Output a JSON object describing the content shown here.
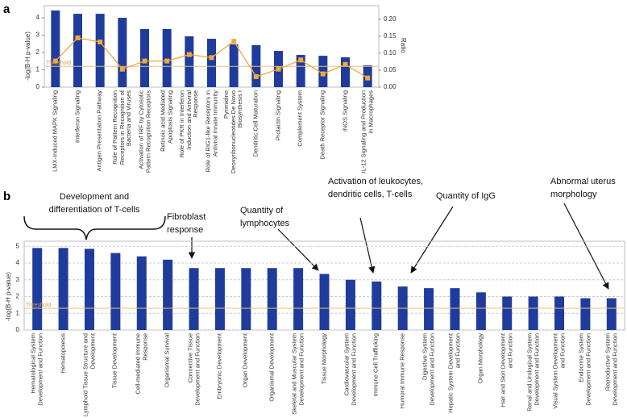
{
  "chart_data": [
    {
      "type": "bar",
      "panel": "a",
      "y_label": "-log(B-H p-value)",
      "y2_label": "Ratio",
      "categories": [
        "LMX-Induced MAPK Signaling",
        "Interferon Signaling",
        "Antigen Presentation Pathway",
        "Role of Pattern Recognition Receptors in Recognition of Bacteria and Viruses",
        "Activation of IRF by Cytosolic Pattern Recognition Receptors",
        "Retinoic acid Mediated Apoptosis Signaling",
        "Role of PKR in Interferon Induction and Antiviral Response",
        "Role of RIG1-like Receptors in Antiviral Innate Immunity",
        "Pyrimidine Deoxyribonucleotides De Novo Biosynthesis I",
        "Dendritic Cell Maturation",
        "Prolactin Signaling",
        "Complement System",
        "Death Receptor Signaling",
        "iNOS Signaling",
        "IL-12 Signaling and Production in Macrophages"
      ],
      "values": [
        4.42,
        4.23,
        4.23,
        4.0,
        3.35,
        3.35,
        2.93,
        2.79,
        2.47,
        2.42,
        2.09,
        1.86,
        1.81,
        1.72,
        1.26
      ],
      "color": "#1f3c9c",
      "y2_values": [
        0.077,
        0.145,
        0.133,
        0.053,
        0.077,
        0.077,
        0.096,
        0.087,
        0.135,
        0.031,
        0.053,
        0.08,
        0.039,
        0.067,
        0.027
      ],
      "line_color": "#f0a83a",
      "axis": "y2",
      "threshold": {
        "label": "Threshold",
        "value": 1.2
      },
      "ylim": [
        0,
        4.7
      ],
      "yticks": [
        0,
        1,
        2,
        3,
        4
      ],
      "y2lim": [
        0,
        0.24
      ],
      "y2ticks": [
        {
          "value": 0,
          "label": "0.00"
        },
        {
          "value": 0.05,
          "label": "0.05"
        },
        {
          "value": 0.1,
          "label": "0.10"
        },
        {
          "value": 0.15,
          "label": "0.15"
        },
        {
          "value": 0.2,
          "label": "0.20"
        }
      ],
      "grid": false
    },
    {
      "type": "bar",
      "panel": "b",
      "y_label": "-log(B-H p-value)",
      "categories": [
        "Hematological System Development and Function",
        "Hematopoiesis",
        "Lymphoid Tissue Structure and Development",
        "Tissue Development",
        "Cell-mediated Immune Response",
        "Organismal Survival",
        "Connective Tissue Development and Function",
        "Embryonic Development",
        "Organ Development",
        "Organismal Development",
        "Skeletal and Muscular System Development and Function",
        "Tissue Morphology",
        "Cardiovascular System Development and Function",
        "Immune Cell Trafficking",
        "Humoral Immune Response",
        "Digestive System Development and Function",
        "Hepatic System Development and Function",
        "Organ Morphology",
        "Hair and Skin Development and Function",
        "Renal and Urological System Development and Function",
        "Visual System Development and Function",
        "Endocrine System Development and Function",
        "Reproductive System Development and Function"
      ],
      "values": [
        4.9,
        4.9,
        4.85,
        4.6,
        4.4,
        4.2,
        3.7,
        3.7,
        3.7,
        3.7,
        3.7,
        3.35,
        3.0,
        2.9,
        2.6,
        2.5,
        2.5,
        2.25,
        2.0,
        2.0,
        2.0,
        1.9,
        1.9
      ],
      "color": "#1f3c9c",
      "threshold": {
        "label": "Threshold",
        "value": 1.3
      },
      "ylim": [
        0,
        5.3
      ],
      "yticks": [
        0,
        1,
        2,
        3,
        4,
        5
      ],
      "grid": true,
      "annotations": [
        "Development and differentiation of T-cells",
        "Fibroblast response",
        "Quantity of lymphocytes",
        "Activation of leukocytes, dendritic cells, T-cells",
        "Quantity of IgG",
        "Abnormal uterus morphology"
      ]
    }
  ]
}
